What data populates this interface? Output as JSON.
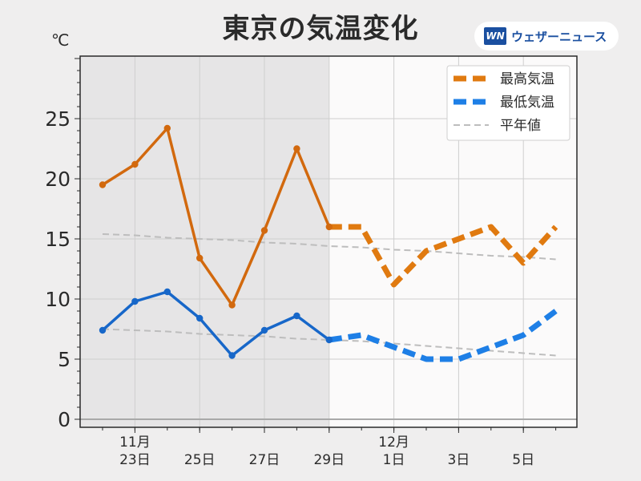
{
  "header": {
    "title": "東京の気温変化",
    "unit": "℃",
    "logo_mark": "WN",
    "logo_text": "ウェザーニュース"
  },
  "chart_data": {
    "type": "line",
    "title": "東京の気温変化",
    "ylabel": "℃",
    "ylim": [
      0,
      30
    ],
    "yticks": [
      0,
      5,
      10,
      15,
      20,
      25
    ],
    "x": [
      "11/22",
      "11/23",
      "11/24",
      "11/25",
      "11/26",
      "11/27",
      "11/28",
      "11/29",
      "11/30",
      "12/1",
      "12/2",
      "12/3",
      "12/4",
      "12/5",
      "12/6"
    ],
    "xticks": [
      {
        "index": 1,
        "lines": [
          "11月",
          "23日"
        ]
      },
      {
        "index": 3,
        "lines": [
          "25日"
        ]
      },
      {
        "index": 5,
        "lines": [
          "27日"
        ]
      },
      {
        "index": 7,
        "lines": [
          "29日"
        ]
      },
      {
        "index": 9,
        "lines": [
          "12月",
          "1日"
        ]
      },
      {
        "index": 11,
        "lines": [
          "3日"
        ]
      },
      {
        "index": 13,
        "lines": [
          "5日"
        ]
      }
    ],
    "observed_until_index": 7,
    "grid": true,
    "legend_position": "top-right",
    "series": [
      {
        "name": "最高気温",
        "color": "#e07a10",
        "observed_color": "#d2690e",
        "values": [
          19.5,
          21.2,
          24.2,
          13.4,
          9.5,
          15.7,
          22.5,
          16.0,
          16.0,
          11.2,
          14.0,
          15.0,
          16.0,
          13.0,
          16.0
        ]
      },
      {
        "name": "最低気温",
        "color": "#1e7fe6",
        "observed_color": "#1767c9",
        "values": [
          7.4,
          9.8,
          10.6,
          8.4,
          5.3,
          7.4,
          8.6,
          6.6,
          7.0,
          6.0,
          5.0,
          5.0,
          6.0,
          7.0,
          9.0
        ]
      },
      {
        "name": "平年値",
        "color": "#bdbdbd",
        "values": [
          15.4,
          15.3,
          15.1,
          15.0,
          14.9,
          14.7,
          14.6,
          14.4,
          14.3,
          14.1,
          14.0,
          13.8,
          13.6,
          13.5,
          13.3
        ]
      },
      {
        "name": "平年値",
        "color": "#bdbdbd",
        "values": [
          7.5,
          7.4,
          7.3,
          7.1,
          7.0,
          6.9,
          6.7,
          6.6,
          6.5,
          6.3,
          6.1,
          5.9,
          5.7,
          5.5,
          5.3
        ]
      }
    ],
    "legend": [
      {
        "label": "最高気温",
        "color": "#e07a10",
        "style": "dashed-thick"
      },
      {
        "label": "最低気温",
        "color": "#1e7fe6",
        "style": "dashed-thick"
      },
      {
        "label": "平年値",
        "color": "#bdbdbd",
        "style": "dashed-thin"
      }
    ]
  }
}
